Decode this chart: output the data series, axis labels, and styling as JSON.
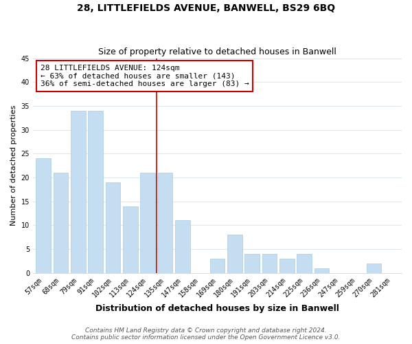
{
  "title": "28, LITTLEFIELDS AVENUE, BANWELL, BS29 6BQ",
  "subtitle": "Size of property relative to detached houses in Banwell",
  "xlabel": "Distribution of detached houses by size in Banwell",
  "ylabel": "Number of detached properties",
  "bar_labels": [
    "57sqm",
    "68sqm",
    "79sqm",
    "91sqm",
    "102sqm",
    "113sqm",
    "124sqm",
    "135sqm",
    "147sqm",
    "158sqm",
    "169sqm",
    "180sqm",
    "191sqm",
    "203sqm",
    "214sqm",
    "225sqm",
    "236sqm",
    "247sqm",
    "259sqm",
    "270sqm",
    "281sqm"
  ],
  "bar_values": [
    24,
    21,
    34,
    34,
    19,
    14,
    21,
    21,
    11,
    0,
    3,
    8,
    4,
    4,
    3,
    4,
    1,
    0,
    0,
    2,
    0
  ],
  "highlight_index": 6,
  "bar_color": "#c5ddf0",
  "bar_edge_color": "#a8cce0",
  "vline_color": "#cc0000",
  "annotation_line1": "28 LITTLEFIELDS AVENUE: 124sqm",
  "annotation_line2": "← 63% of detached houses are smaller (143)",
  "annotation_line3": "36% of semi-detached houses are larger (83) →",
  "annotation_box_color": "#ffffff",
  "annotation_box_edge": "#cc0000",
  "footer_line1": "Contains HM Land Registry data © Crown copyright and database right 2024.",
  "footer_line2": "Contains public sector information licensed under the Open Government Licence v3.0.",
  "ylim": [
    0,
    45
  ],
  "yticks": [
    0,
    5,
    10,
    15,
    20,
    25,
    30,
    35,
    40,
    45
  ],
  "bg_color": "#ffffff",
  "grid_color": "#dce8f0",
  "title_fontsize": 10,
  "subtitle_fontsize": 9,
  "xlabel_fontsize": 9,
  "ylabel_fontsize": 8,
  "tick_fontsize": 7,
  "annotation_fontsize": 8,
  "footer_fontsize": 6.5
}
